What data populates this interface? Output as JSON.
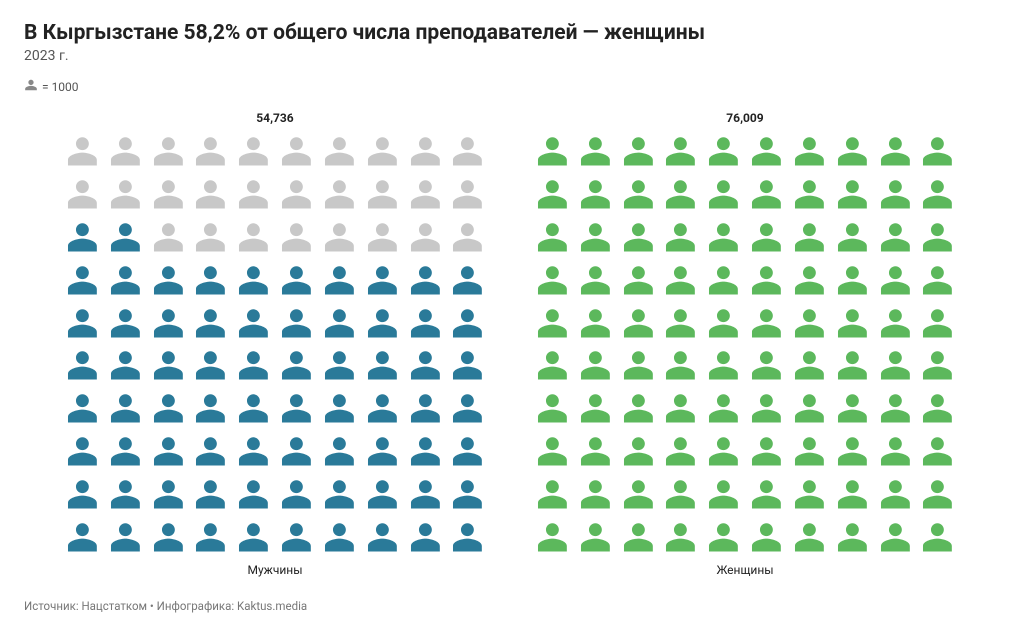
{
  "title": "В Кыргызстане 58,2% от общего числа преподавателей — женщины",
  "subtitle": "2023 г.",
  "legend_text": "= 1000",
  "chart": {
    "type": "pictogram",
    "grid_cols": 10,
    "grid_rows": 10,
    "scale": 76009,
    "empty_color": "#c8c8c8",
    "background_color": "#ffffff",
    "series": [
      {
        "label": "Мужчины",
        "value": 54736,
        "value_display": "54,736",
        "color": "#2a7a99"
      },
      {
        "label": "Женщины",
        "value": 76009,
        "value_display": "76,009",
        "color": "#5cb85c"
      }
    ]
  },
  "footer": "Источник: Нацстатком • Инфографика: Kaktus.media"
}
